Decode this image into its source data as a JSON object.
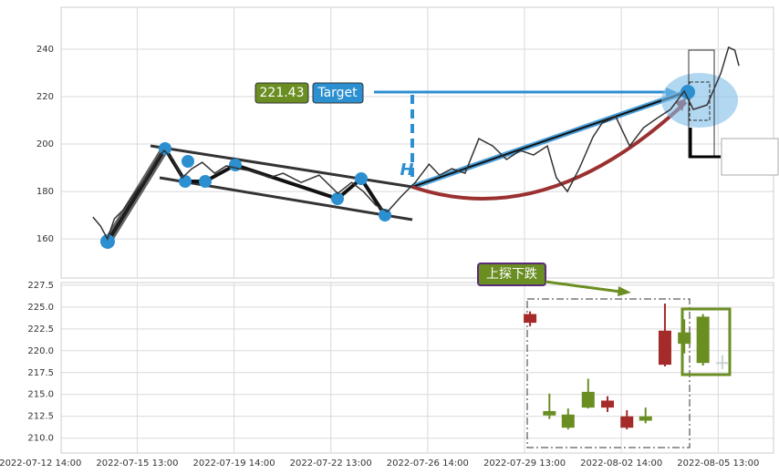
{
  "chart_data": [
    {
      "type": "line",
      "color": "#333333",
      "grid": true,
      "x": [
        7.6,
        8.7,
        9.7,
        10.7,
        12,
        13.3,
        15.3,
        16.8,
        17.9,
        19.2,
        20.5,
        21.9,
        23.4,
        25.2,
        26.9,
        28.7,
        30.8,
        33.1,
        35.1,
        37.7,
        40.3,
        43,
        45,
        46.7,
        48.5,
        50.2,
        52.2,
        54.2,
        56.2,
        57.7,
        59.5,
        61.4,
        63.4,
        65.4,
        67.4,
        69.4,
        71.3,
        73.3,
        74.6,
        76.2,
        77.9,
        79.9,
        81.2,
        83.2,
        85.2,
        87.2,
        89.1,
        91.1,
        93.1,
        94.4,
        96.4,
        98.4,
        99.5,
        100.4,
        101
      ],
      "values": [
        169.2,
        165.4,
        160,
        168.5,
        172.3,
        178,
        185.8,
        193.5,
        197.3,
        193.5,
        185.8,
        189.6,
        192.3,
        187.7,
        190.8,
        189.6,
        188.5,
        185.8,
        187.7,
        183.8,
        186.9,
        179.2,
        183.8,
        180,
        174.2,
        171.5,
        178,
        183.8,
        191.5,
        186.9,
        189.6,
        187.7,
        202.3,
        199.2,
        193.5,
        197.3,
        195.4,
        199.2,
        185.8,
        180,
        189.6,
        203,
        208.8,
        211.5,
        199.2,
        206.9,
        210.8,
        214.6,
        222.3,
        214.6,
        216.5,
        230,
        240.8,
        239.6,
        233
      ],
      "xlim": [
        3,
        106
      ],
      "ylim": [
        143.5,
        257.7
      ],
      "yticks": [
        160,
        180,
        200,
        220,
        240
      ],
      "annotations": [
        "221.43",
        "Target",
        "H"
      ]
    },
    {
      "type": "candlestick",
      "grid": true,
      "x": [
        70.8,
        73.6,
        76.3,
        79.2,
        82,
        84.8,
        87.5,
        90.3,
        93.1,
        95.8,
        98.6
      ],
      "open": [
        224.2,
        212.6,
        211.2,
        213.5,
        214.3,
        212.5,
        212,
        222.3,
        220.8,
        218.6,
        218.7
      ],
      "close": [
        223.2,
        213.1,
        212.7,
        215.3,
        213.5,
        211.2,
        212.5,
        218.4,
        222.1,
        223.9,
        218.6
      ],
      "high": [
        224.5,
        215.1,
        213.4,
        216.8,
        214.8,
        213.2,
        213.5,
        225.4,
        223.6,
        224.2,
        219.5
      ],
      "low": [
        222.8,
        212.2,
        211,
        213.4,
        213,
        211,
        211.7,
        218.2,
        219.7,
        218.3,
        217.9
      ],
      "colors": [
        "#a52a2a",
        "#6b8e23",
        "#6b8e23",
        "#6b8e23",
        "#a52a2a",
        "#a52a2a",
        "#6b8e23",
        "#a52a2a",
        "#6b8e23",
        "#6b8e23",
        "#c8d3d3"
      ],
      "xlim": [
        3,
        106
      ],
      "ylim": [
        208.3,
        227.8
      ],
      "yticks": [
        {
          "value": 210,
          "label": "210.0"
        },
        {
          "value": 212.5,
          "label": "212.5"
        },
        {
          "value": 215,
          "label": "215.0"
        },
        {
          "value": 217.5,
          "label": "217.5"
        },
        {
          "value": 220,
          "label": "220.0"
        },
        {
          "value": 222.5,
          "label": "222.5"
        },
        {
          "value": 225,
          "label": "225.0"
        },
        {
          "value": 227.5,
          "label": "227.5"
        }
      ],
      "xticks": [
        {
          "value": 0,
          "label": "2022-07-12 14:00"
        },
        {
          "value": 14,
          "label": "2022-07-15 13:00"
        },
        {
          "value": 28,
          "label": "2022-07-19 14:00"
        },
        {
          "value": 42,
          "label": "2022-07-22 13:00"
        },
        {
          "value": 56,
          "label": "2022-07-26 14:00"
        },
        {
          "value": 70,
          "label": "2022-07-29 13:00"
        },
        {
          "value": 84,
          "label": "2022-08-02 14:00"
        },
        {
          "value": 98,
          "label": "2022-08-05 13:00"
        }
      ],
      "annotations": [
        "上探下跌"
      ]
    }
  ]
}
